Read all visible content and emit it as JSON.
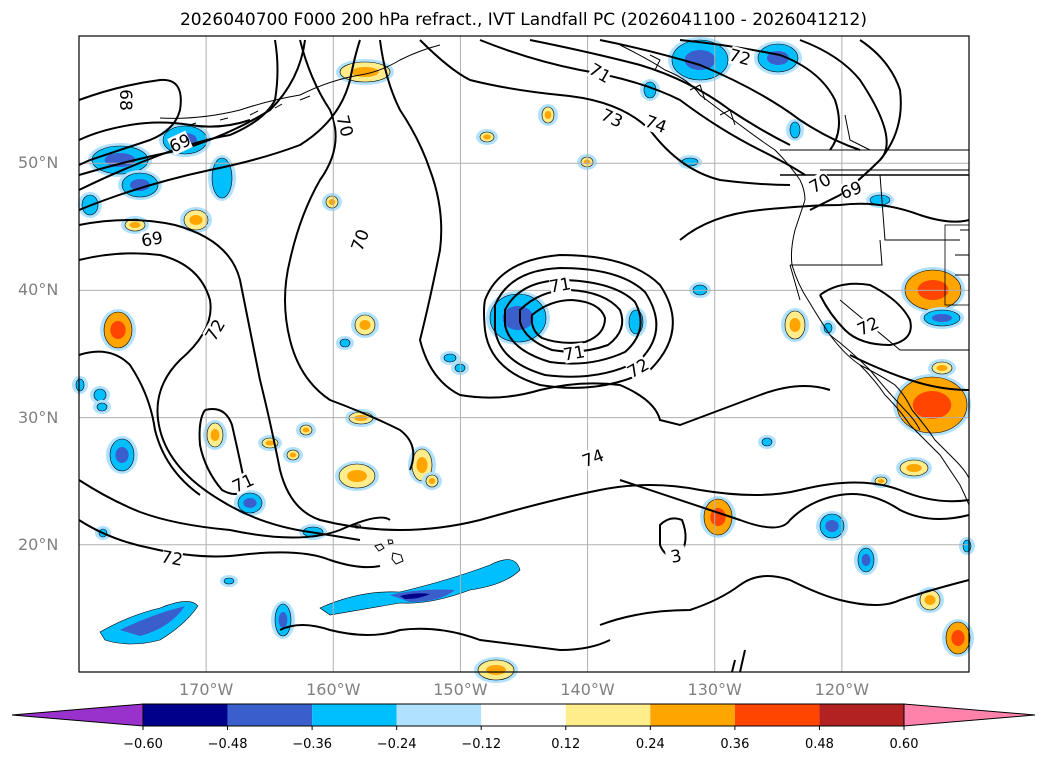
{
  "title": "2026040700 F000 200 hPa refract., IVT Landfall PC (2026041100 - 2026041212)",
  "map": {
    "lon_range": [
      -180,
      -110
    ],
    "lat_range": [
      10,
      60
    ],
    "lon_ticks": [
      {
        "lon": -170,
        "label": "170°W"
      },
      {
        "lon": -160,
        "label": "160°W"
      },
      {
        "lon": -150,
        "label": "150°W"
      },
      {
        "lon": -140,
        "label": "140°W"
      },
      {
        "lon": -130,
        "label": "130°W"
      },
      {
        "lon": -120,
        "label": "120°W"
      }
    ],
    "lat_ticks": [
      {
        "lat": 50,
        "label": "50°N"
      },
      {
        "lat": 40,
        "label": "40°N"
      },
      {
        "lat": 30,
        "label": "30°N"
      },
      {
        "lat": 20,
        "label": "20°N"
      }
    ],
    "grid": true,
    "contour_labels": [
      "68",
      "69",
      "70",
      "71",
      "72",
      "73",
      "74",
      "70",
      "69",
      "72",
      "71",
      "72",
      "71",
      "71",
      "72",
      "74",
      "3",
      "72",
      "69",
      "70",
      "71",
      "72"
    ]
  },
  "colorbar": {
    "ticks": [
      "−0.60",
      "−0.48",
      "−0.36",
      "−0.24",
      "−0.12",
      "0.12",
      "0.24",
      "0.36",
      "0.48",
      "0.60"
    ],
    "colors": [
      "#9932cc",
      "#00008b",
      "#3a5fcd",
      "#00bfff",
      "#b0e2ff",
      "#ffffff",
      "#ffec8b",
      "#ffa500",
      "#ff4500",
      "#b22222",
      "#ff82ab"
    ]
  },
  "colors": {
    "map_background": "#ffffff",
    "grid": "#b0b0b0",
    "contour": "#000000",
    "axis_label": "#808080"
  }
}
